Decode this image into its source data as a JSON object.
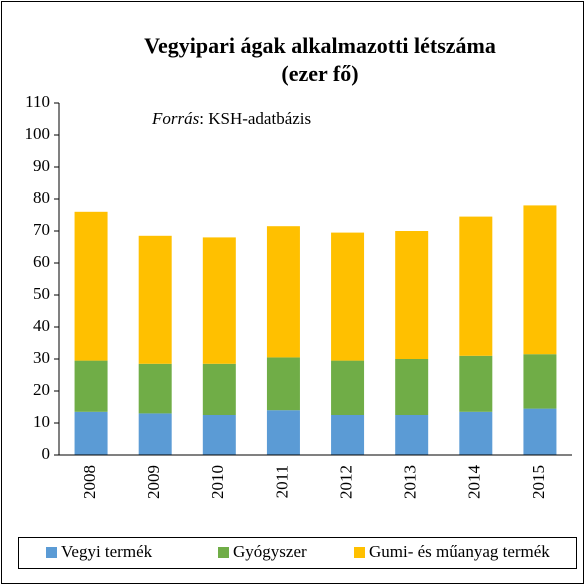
{
  "chart_data": {
    "type": "stacked_bar",
    "title": [
      "Vegyipari ágak alkalmazotti létszáma",
      "(ezer fő)"
    ],
    "source_label": "Forrás",
    "source_text": ": KSH-adatbázis",
    "categories": [
      "2008",
      "2009",
      "2010",
      "2011",
      "2012",
      "2013",
      "2014",
      "2015"
    ],
    "series": [
      {
        "name": "Vegyi termék",
        "color": "#5b9bd5",
        "values": [
          13.5,
          13,
          12.5,
          14,
          12.5,
          12.5,
          13.5,
          14.5
        ]
      },
      {
        "name": "Gyógyszer",
        "color": "#70ad47",
        "values": [
          16,
          15.5,
          16,
          16.5,
          17,
          17.5,
          17.5,
          17
        ]
      },
      {
        "name": "Gumi- és műanyag termék",
        "color": "#ffc000",
        "values": [
          46.5,
          40,
          39.5,
          41,
          40,
          40,
          43.5,
          46.5
        ]
      }
    ],
    "ylim": [
      0,
      110
    ],
    "yticks": [
      0,
      10,
      20,
      30,
      40,
      50,
      60,
      70,
      80,
      90,
      100,
      110
    ],
    "grid": false
  }
}
